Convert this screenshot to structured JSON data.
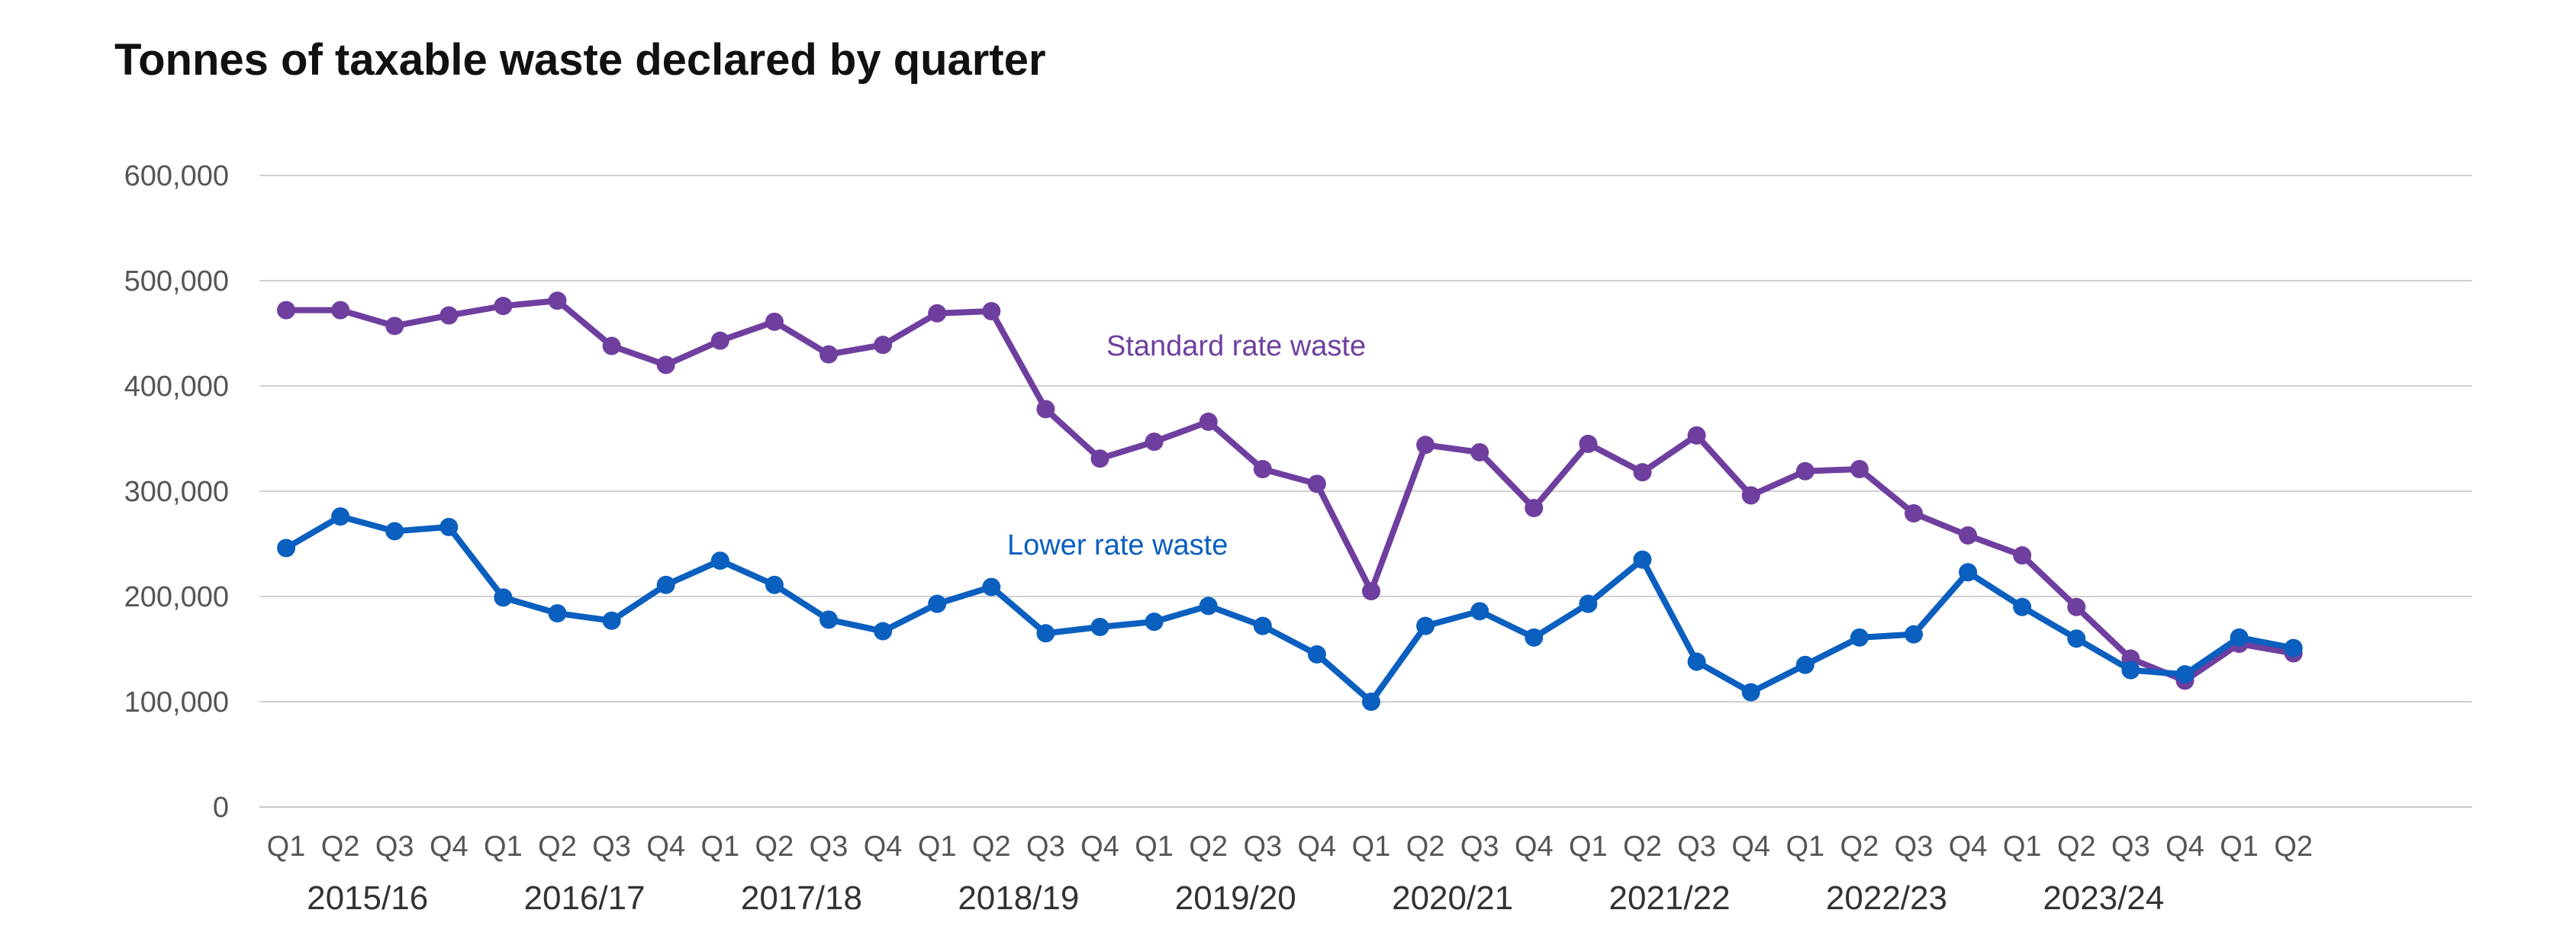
{
  "chart_data": {
    "type": "line",
    "title": "Tonnes of taxable waste declared by quarter",
    "xlabel": "",
    "ylabel": "",
    "ylim": [
      0,
      600000
    ],
    "grid": true,
    "y_ticks": [
      {
        "value": 0,
        "label": "0"
      },
      {
        "value": 100000,
        "label": "100,000"
      },
      {
        "value": 200000,
        "label": "200,000"
      },
      {
        "value": 300000,
        "label": "300,000"
      },
      {
        "value": 400000,
        "label": "400,000"
      },
      {
        "value": 500000,
        "label": "500,000"
      },
      {
        "value": 600000,
        "label": "600,000"
      }
    ],
    "categories": [
      "Q1",
      "Q2",
      "Q3",
      "Q4",
      "Q1",
      "Q2",
      "Q3",
      "Q4",
      "Q1",
      "Q2",
      "Q3",
      "Q4",
      "Q1",
      "Q2",
      "Q3",
      "Q4",
      "Q1",
      "Q2",
      "Q3",
      "Q4",
      "Q1",
      "Q2",
      "Q3",
      "Q4",
      "Q1",
      "Q2",
      "Q3",
      "Q4",
      "Q1",
      "Q2",
      "Q3",
      "Q4",
      "Q1",
      "Q2",
      "Q3",
      "Q4",
      "Q1",
      "Q2"
    ],
    "year_labels": [
      {
        "label": "2015/16",
        "start_index": 0
      },
      {
        "label": "2016/17",
        "start_index": 4
      },
      {
        "label": "2017/18",
        "start_index": 8
      },
      {
        "label": "2018/19",
        "start_index": 12
      },
      {
        "label": "2019/20",
        "start_index": 16
      },
      {
        "label": "2020/21",
        "start_index": 20
      },
      {
        "label": "2021/22",
        "start_index": 24
      },
      {
        "label": "2022/23",
        "start_index": 28
      },
      {
        "label": "2023/24",
        "start_index": 32
      }
    ],
    "series": [
      {
        "name": "Standard rate waste",
        "color": "#6f3f9f",
        "values": [
          472000,
          472000,
          457000,
          467000,
          476000,
          481000,
          438000,
          420000,
          443000,
          461000,
          430000,
          439000,
          469000,
          471000,
          378000,
          331000,
          347000,
          366000,
          321000,
          307000,
          205000,
          344000,
          337000,
          284000,
          345000,
          318000,
          353000,
          296000,
          319000,
          321000,
          279000,
          258000,
          239000,
          190000,
          141000,
          120000,
          155000,
          146000
        ]
      },
      {
        "name": "Lower rate waste",
        "color": "#0a5fbf",
        "values": [
          246000,
          276000,
          262000,
          266000,
          199000,
          184000,
          177000,
          211000,
          234000,
          211000,
          178000,
          167000,
          193000,
          209000,
          165000,
          171000,
          176000,
          191000,
          172000,
          145000,
          100000,
          172000,
          186000,
          161000,
          193000,
          235000,
          138000,
          109000,
          135000,
          161000,
          164000,
          223000,
          190000,
          160000,
          130000,
          126000,
          161000,
          151000
        ]
      }
    ]
  }
}
